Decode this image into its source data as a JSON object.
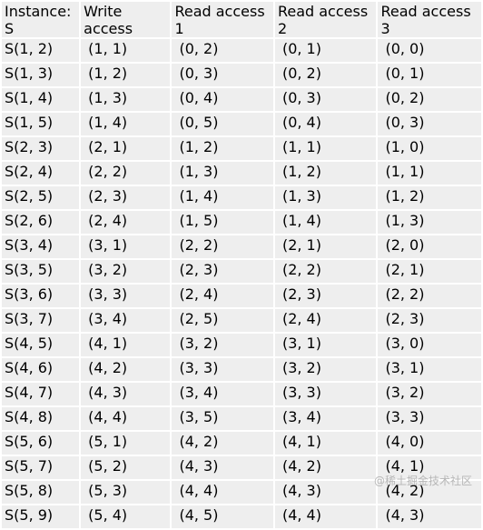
{
  "table": {
    "headers": [
      "Instance: S",
      "Write access",
      "Read access 1",
      "Read access 2",
      "Read access 3"
    ],
    "rows": [
      [
        "S(1, 2)",
        "(1, 1)",
        "(0, 2)",
        "(0, 1)",
        "(0, 0)"
      ],
      [
        "S(1, 3)",
        "(1, 2)",
        "(0, 3)",
        "(0, 2)",
        "(0, 1)"
      ],
      [
        "S(1, 4)",
        "(1, 3)",
        "(0, 4)",
        "(0, 3)",
        "(0, 2)"
      ],
      [
        "S(1, 5)",
        "(1, 4)",
        "(0, 5)",
        "(0, 4)",
        "(0, 3)"
      ],
      [
        "S(2, 3)",
        "(2, 1)",
        "(1, 2)",
        "(1, 1)",
        "(1, 0)"
      ],
      [
        "S(2, 4)",
        "(2, 2)",
        "(1, 3)",
        "(1, 2)",
        "(1, 1)"
      ],
      [
        "S(2, 5)",
        "(2, 3)",
        "(1, 4)",
        "(1, 3)",
        "(1, 2)"
      ],
      [
        "S(2, 6)",
        "(2, 4)",
        "(1, 5)",
        "(1, 4)",
        "(1, 3)"
      ],
      [
        "S(3, 4)",
        "(3, 1)",
        "(2, 2)",
        "(2, 1)",
        "(2, 0)"
      ],
      [
        "S(3, 5)",
        "(3, 2)",
        "(2, 3)",
        "(2, 2)",
        "(2, 1)"
      ],
      [
        "S(3, 6)",
        "(3, 3)",
        "(2, 4)",
        "(2, 3)",
        "(2, 2)"
      ],
      [
        "S(3, 7)",
        "(3, 4)",
        "(2, 5)",
        "(2, 4)",
        "(2, 3)"
      ],
      [
        "S(4, 5)",
        "(4, 1)",
        "(3, 2)",
        "(3, 1)",
        "(3, 0)"
      ],
      [
        "S(4, 6)",
        "(4, 2)",
        "(3, 3)",
        "(3, 2)",
        "(3, 1)"
      ],
      [
        "S(4, 7)",
        "(4, 3)",
        "(3, 4)",
        "(3, 3)",
        "(3, 2)"
      ],
      [
        "S(4, 8)",
        "(4, 4)",
        "(3, 5)",
        "(3, 4)",
        "(3, 3)"
      ],
      [
        "S(5, 6)",
        "(5, 1)",
        "(4, 2)",
        "(4, 1)",
        "(4, 0)"
      ],
      [
        "S(5, 7)",
        "(5, 2)",
        "(4, 3)",
        "(4, 2)",
        "(4, 1)"
      ],
      [
        "S(5, 8)",
        "(5, 3)",
        "(4, 4)",
        "(4, 3)",
        "(4, 2)"
      ],
      [
        "S(5, 9)",
        "(5, 4)",
        "(4, 5)",
        "(4, 4)",
        "(4, 3)"
      ]
    ]
  },
  "watermark": "@稀土掘金技术社区",
  "colors": {
    "cell_background": "#eeeeee",
    "text": "#000000",
    "watermark": "#b7b7b7"
  }
}
